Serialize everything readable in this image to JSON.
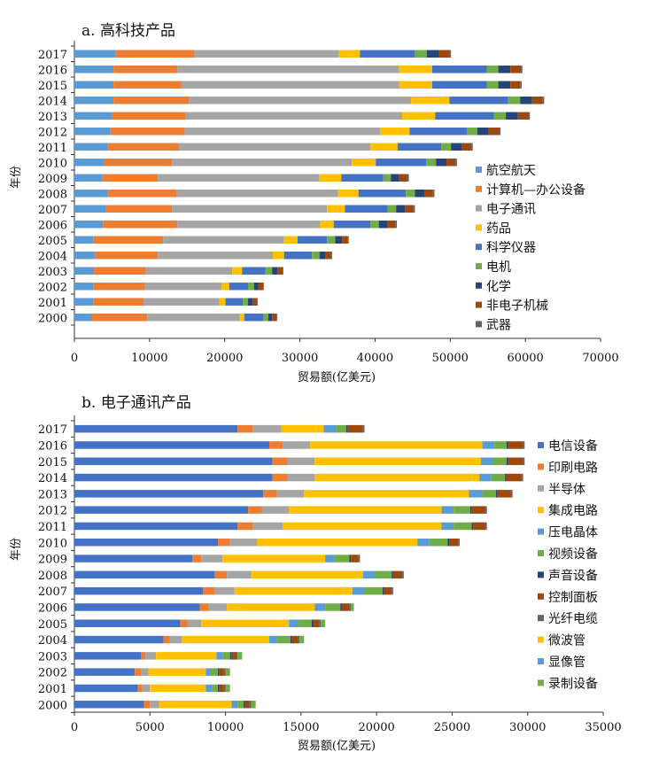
{
  "chart_data": [
    {
      "type": "bar",
      "orientation": "horizontal",
      "stacked": true,
      "title": "a. 高科技产品",
      "xlabel": "贸易额(亿美元)",
      "ylabel": "年份",
      "xlim": [
        0,
        70000
      ],
      "x_ticks": [
        "0",
        "10000",
        "20000",
        "30000",
        "40000",
        "50000",
        "60000",
        "70000"
      ],
      "grid": false,
      "legend_position": "right",
      "categories": [
        "2017",
        "2016",
        "2015",
        "2014",
        "2013",
        "2012",
        "2011",
        "2010",
        "2009",
        "2008",
        "2007",
        "2006",
        "2005",
        "2004",
        "2003",
        "2002",
        "2001",
        "2000"
      ],
      "series": [
        {
          "name": "航空航天",
          "color": "#5b9bd5",
          "values": [
            5500,
            5200,
            5200,
            5200,
            5000,
            4800,
            4500,
            4000,
            3700,
            4500,
            4200,
            3800,
            2500,
            2700,
            2600,
            2500,
            2500,
            2300
          ]
        },
        {
          "name": "计算机—办公设备",
          "color": "#ed7d31",
          "values": [
            10500,
            8500,
            9000,
            10000,
            9800,
            9900,
            9400,
            9000,
            7400,
            9100,
            8800,
            9900,
            9300,
            8400,
            6900,
            6900,
            6700,
            7400
          ]
        },
        {
          "name": "电子通讯",
          "color": "#a5a5a5",
          "values": [
            19200,
            29500,
            29000,
            29600,
            28800,
            26000,
            25500,
            23900,
            21500,
            21500,
            20600,
            19000,
            16100,
            15300,
            11500,
            10200,
            10100,
            12300
          ]
        },
        {
          "name": "药品",
          "color": "#ffc000",
          "values": [
            2800,
            4400,
            4400,
            5100,
            4400,
            3900,
            3600,
            3200,
            2900,
            2700,
            2400,
            1800,
            1800,
            1500,
            1300,
            1000,
            800,
            600
          ]
        },
        {
          "name": "科学仪器",
          "color": "#4472c4",
          "values": [
            7300,
            7300,
            7300,
            7800,
            7800,
            7600,
            5800,
            6700,
            5600,
            6300,
            5700,
            4900,
            3900,
            3700,
            3100,
            2500,
            2300,
            2500
          ]
        },
        {
          "name": "电机",
          "color": "#70ad47",
          "values": [
            1600,
            1500,
            1500,
            1600,
            1600,
            1400,
            1300,
            1300,
            1000,
            1200,
            1100,
            1100,
            1100,
            1000,
            900,
            800,
            700,
            700
          ]
        },
        {
          "name": "化学",
          "color": "#264478",
          "values": [
            1600,
            1600,
            1600,
            1600,
            1600,
            1500,
            1400,
            1400,
            1100,
            1300,
            1200,
            1100,
            900,
            800,
            700,
            600,
            600,
            500
          ]
        },
        {
          "name": "非电子机械",
          "color": "#9e480e",
          "values": [
            1400,
            1400,
            1300,
            1400,
            1400,
            1400,
            1300,
            1200,
            1100,
            1100,
            1100,
            1100,
            800,
            800,
            700,
            600,
            600,
            600
          ]
        },
        {
          "name": "武器",
          "color": "#636363",
          "values": [
            200,
            200,
            200,
            200,
            200,
            200,
            200,
            200,
            200,
            200,
            200,
            200,
            100,
            100,
            100,
            100,
            100,
            100
          ]
        }
      ]
    },
    {
      "type": "bar",
      "orientation": "horizontal",
      "stacked": true,
      "title": "b. 电子通讯产品",
      "xlabel": "贸易额(亿美元)",
      "ylabel": "年份",
      "xlim": [
        0,
        35000
      ],
      "x_ticks": [
        "0",
        "5000",
        "10000",
        "15000",
        "20000",
        "25000",
        "30000",
        "35000"
      ],
      "grid": false,
      "legend_position": "right",
      "categories": [
        "2017",
        "2016",
        "2015",
        "2014",
        "2013",
        "2012",
        "2011",
        "2010",
        "2009",
        "2008",
        "2007",
        "2006",
        "2005",
        "2004",
        "2003",
        "2002",
        "2001",
        "2000"
      ],
      "series": [
        {
          "name": "电信设备",
          "color": "#4472c4",
          "values": [
            10800,
            12900,
            13100,
            13100,
            12500,
            11500,
            10800,
            9500,
            7800,
            9300,
            8500,
            8300,
            7000,
            5900,
            4400,
            4000,
            4200,
            4600
          ]
        },
        {
          "name": "印刷电路",
          "color": "#ed7d31",
          "values": [
            1000,
            900,
            1000,
            1000,
            900,
            900,
            1000,
            800,
            600,
            800,
            800,
            600,
            500,
            400,
            300,
            400,
            300,
            400
          ]
        },
        {
          "name": "半导体",
          "color": "#a5a5a5",
          "values": [
            1900,
            1800,
            1800,
            1800,
            1800,
            1800,
            2000,
            1800,
            1400,
            1600,
            1300,
            1200,
            900,
            800,
            700,
            500,
            500,
            600
          ]
        },
        {
          "name": "集成电路",
          "color": "#ffc000",
          "values": [
            2800,
            11400,
            11000,
            10900,
            10900,
            10100,
            10500,
            10600,
            6800,
            7400,
            7800,
            5800,
            5800,
            5800,
            4000,
            3800,
            3700,
            4800
          ]
        },
        {
          "name": "压电晶体",
          "color": "#5b9bd5",
          "values": [
            800,
            800,
            800,
            800,
            900,
            800,
            800,
            800,
            600,
            800,
            800,
            700,
            600,
            500,
            400,
            300,
            400,
            400
          ]
        },
        {
          "name": "视频设备",
          "color": "#70ad47",
          "values": [
            700,
            800,
            900,
            900,
            900,
            1100,
            1200,
            1200,
            1000,
            1100,
            1200,
            1000,
            900,
            900,
            500,
            500,
            400,
            400
          ]
        },
        {
          "name": "声音设备",
          "color": "#264478",
          "values": [
            100,
            100,
            100,
            100,
            100,
            100,
            100,
            100,
            100,
            100,
            100,
            100,
            100,
            100,
            100,
            100,
            100,
            100
          ]
        },
        {
          "name": "控制面板",
          "color": "#9e480e",
          "values": [
            1000,
            1000,
            1000,
            1000,
            900,
            900,
            800,
            600,
            500,
            600,
            500,
            500,
            400,
            400,
            300,
            300,
            300,
            300
          ]
        },
        {
          "name": "光纤电缆",
          "color": "#636363",
          "values": [
            100,
            100,
            100,
            100,
            100,
            100,
            100,
            100,
            100,
            100,
            100,
            100,
            100,
            100,
            100,
            100,
            100,
            100
          ]
        },
        {
          "name": "微波管",
          "color": "#ffc000",
          "values": [
            0,
            0,
            0,
            0,
            0,
            0,
            0,
            0,
            0,
            0,
            0,
            0,
            0,
            0,
            0,
            0,
            0,
            0
          ]
        },
        {
          "name": "显像管",
          "color": "#5b9bd5",
          "values": [
            0,
            0,
            0,
            0,
            0,
            0,
            0,
            0,
            0,
            0,
            0,
            0,
            0,
            0,
            0,
            0,
            0,
            0
          ]
        },
        {
          "name": "录制设备",
          "color": "#70ad47",
          "values": [
            0,
            0,
            0,
            0,
            0,
            0,
            0,
            0,
            0,
            0,
            0,
            200,
            300,
            300,
            300,
            300,
            300,
            300
          ]
        }
      ]
    }
  ]
}
